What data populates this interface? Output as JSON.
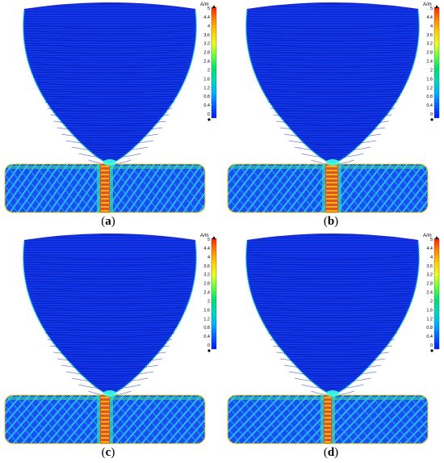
{
  "figure": {
    "colorbar": {
      "unit": "A/m",
      "ticks": [
        "5",
        "4.4",
        "4",
        "3.6",
        "3.2",
        "2.8",
        "2.4",
        "2",
        "1.6",
        "1.2",
        "0.8",
        "0.4",
        "0"
      ],
      "colors": [
        "#ff2000",
        "#ff8800",
        "#ffd000",
        "#e8ff20",
        "#60ff40",
        "#00e070",
        "#00d8c0",
        "#00b0ff",
        "#0060ff",
        "#0018ff"
      ]
    },
    "panels": [
      {
        "id": "a",
        "open": "(",
        "label": "a",
        "close": ")"
      },
      {
        "id": "b",
        "open": "(",
        "label": "b",
        "close": ")"
      },
      {
        "id": "c",
        "open": "(",
        "label": "c",
        "close": ")"
      },
      {
        "id": "d",
        "open": "(",
        "label": "d",
        "close": ")"
      }
    ]
  }
}
